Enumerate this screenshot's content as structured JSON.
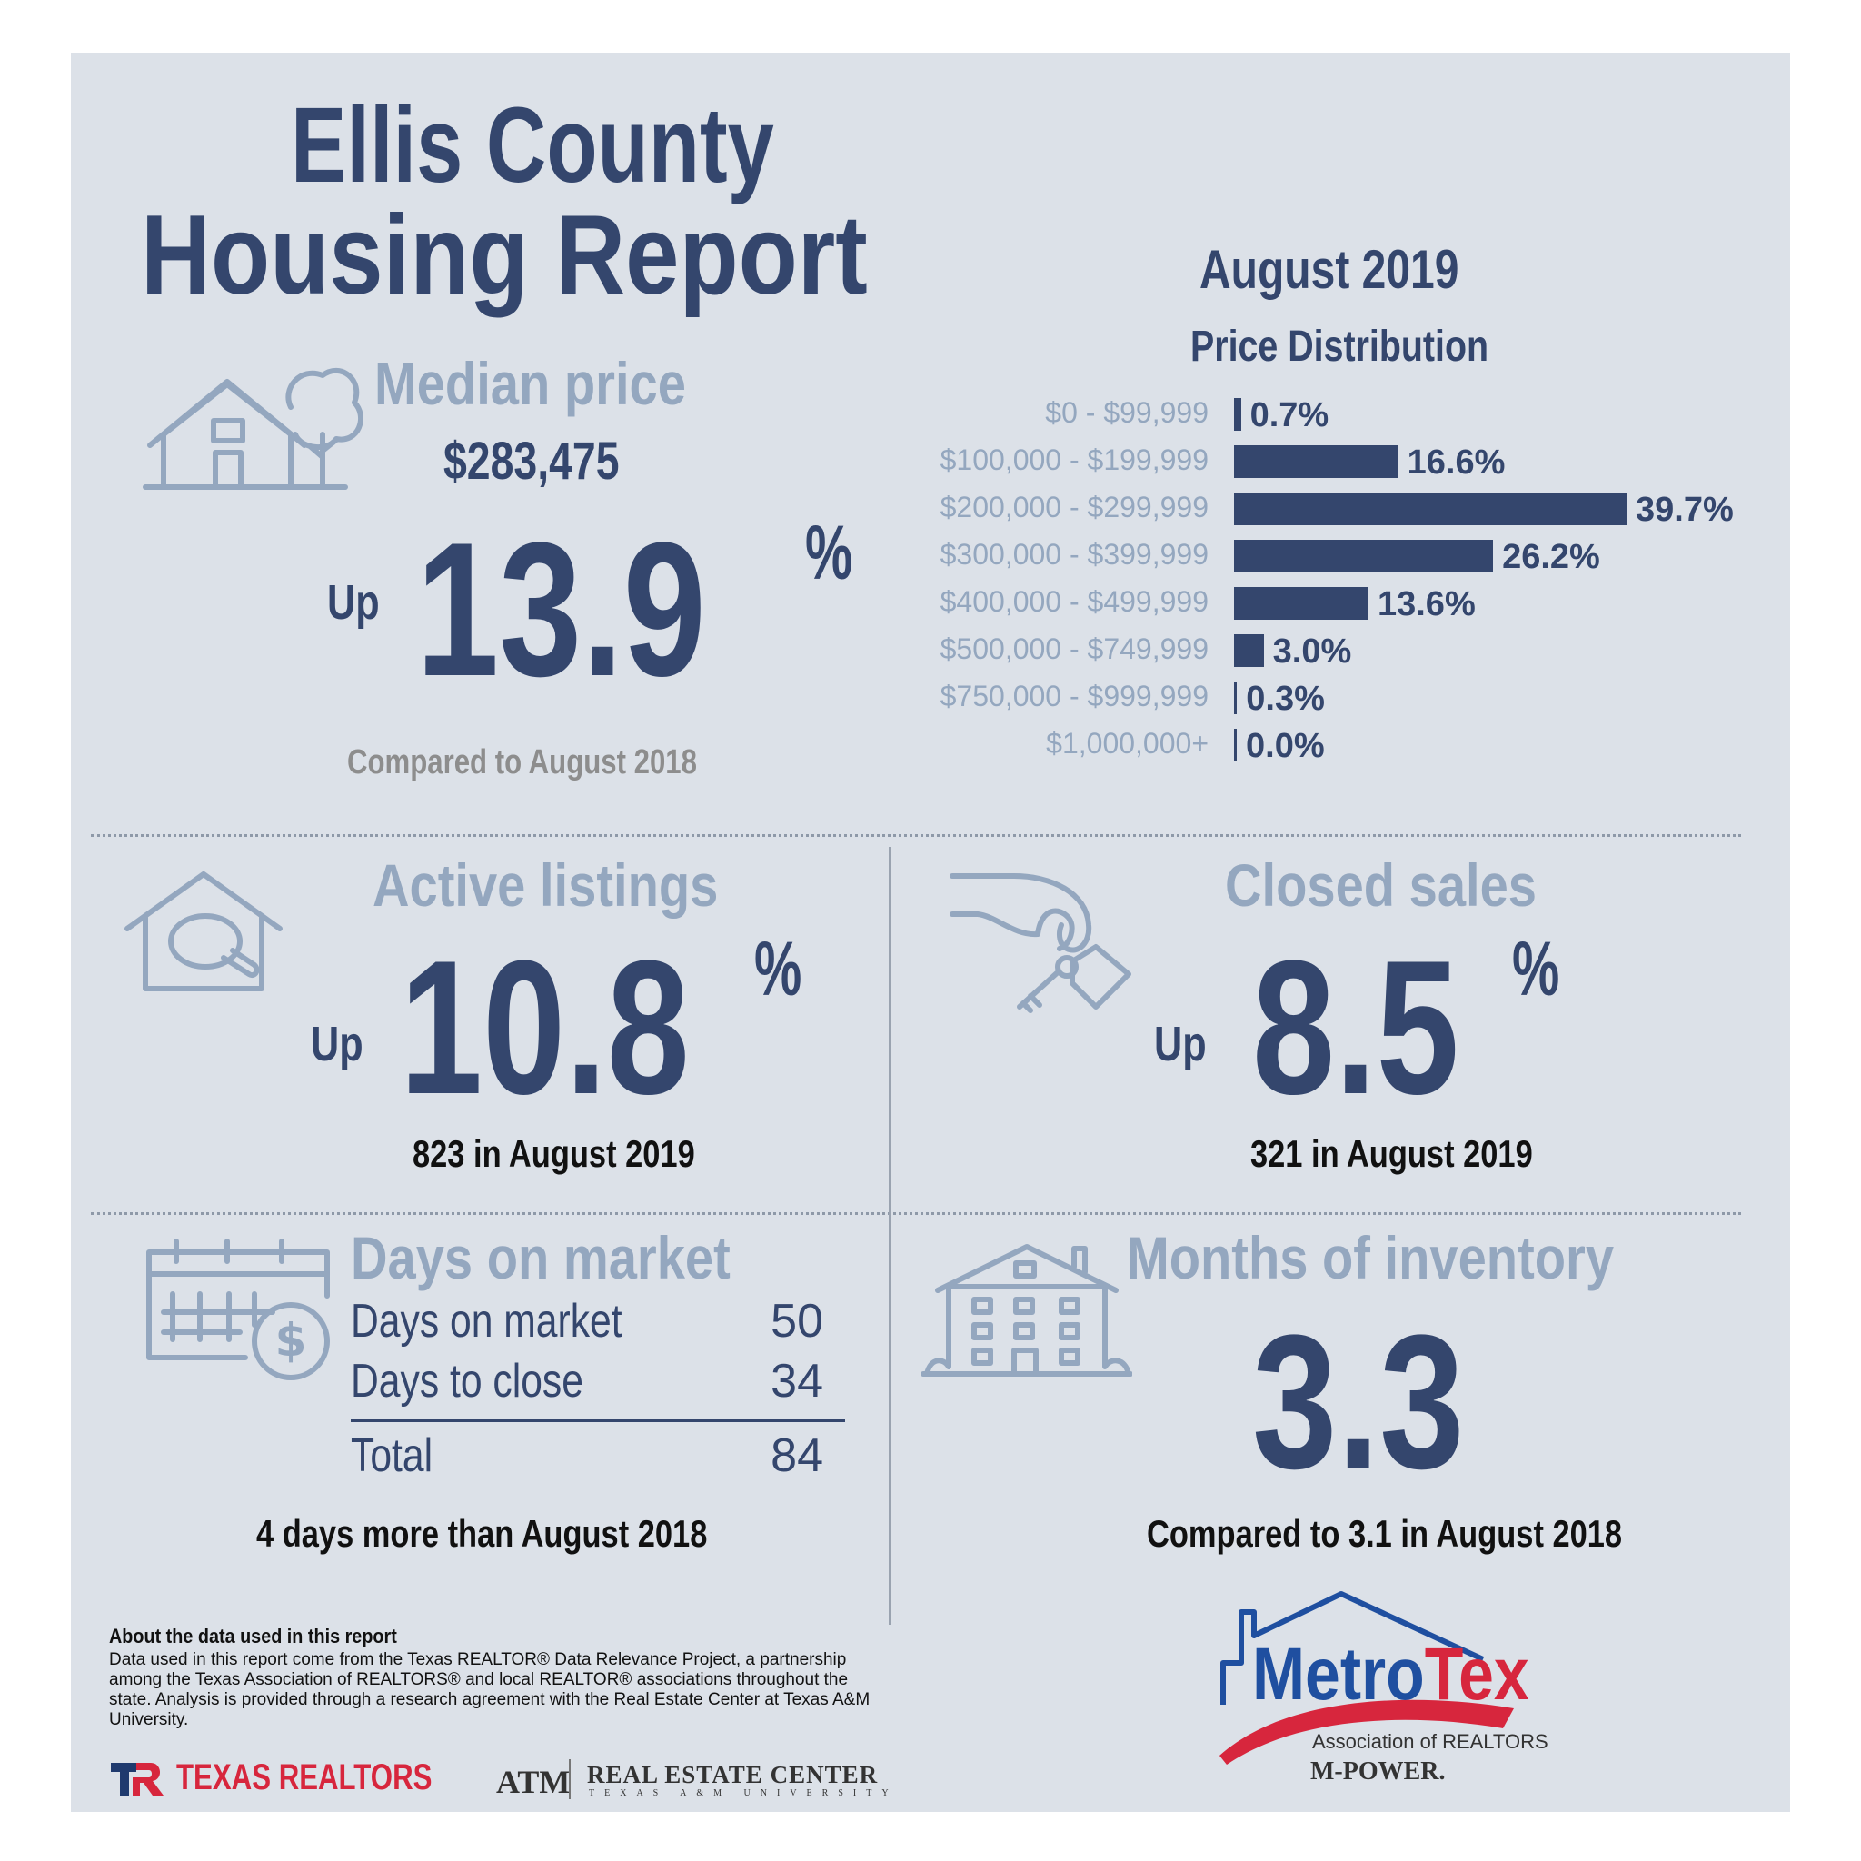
{
  "title": {
    "line1": "Ellis County",
    "line2": "Housing Report"
  },
  "period": "August 2019",
  "median": {
    "title": "Median price",
    "price": "$283,475",
    "direction": "Up",
    "value": "13.9",
    "unit": "%",
    "note": "Compared to August 2018"
  },
  "distribution": {
    "title": "Price Distribution",
    "rows": [
      {
        "label": "$0 - $99,999",
        "value": "0.7%",
        "pct": 0.7
      },
      {
        "label": "$100,000 - $199,999",
        "value": "16.6%",
        "pct": 16.6
      },
      {
        "label": "$200,000 - $299,999",
        "value": "39.7%",
        "pct": 39.7
      },
      {
        "label": "$300,000 - $399,999",
        "value": "26.2%",
        "pct": 26.2
      },
      {
        "label": "$400,000 - $499,999",
        "value": "13.6%",
        "pct": 13.6
      },
      {
        "label": "$500,000 - $749,999",
        "value": "3.0%",
        "pct": 3.0
      },
      {
        "label": "$750,000 - $999,999",
        "value": "0.3%",
        "pct": 0.3
      },
      {
        "label": "$1,000,000+",
        "value": "0.0%",
        "pct": 0.0
      }
    ]
  },
  "active": {
    "title": "Active listings",
    "direction": "Up",
    "value": "10.8",
    "unit": "%",
    "note": "823 in August 2019"
  },
  "closed": {
    "title": "Closed sales",
    "direction": "Up",
    "value": "8.5",
    "unit": "%",
    "note": "321 in August 2019"
  },
  "dom": {
    "title": "Days on market",
    "rows": [
      {
        "label": "Days on market",
        "value": "50"
      },
      {
        "label": "Days to close",
        "value": "34"
      }
    ],
    "total_label": "Total",
    "total_value": "84",
    "note": "4 days more than August 2018"
  },
  "inventory": {
    "title": "Months of inventory",
    "value": "3.3",
    "note": "Compared to 3.1 in August 2018"
  },
  "about": {
    "heading": "About the data used in this report",
    "body": "Data used in this report come from the Texas REALTOR® Data Relevance Project, a partnership among the Texas Association of REALTORS® and local REALTOR® associations throughout the state. Analysis is provided through a research agreement with the Real Estate Center at Texas A&M University."
  },
  "logos": {
    "texas_realtors": "TEXAS REALTORS",
    "atm": "ATM",
    "rec": "REAL ESTATE CENTER",
    "rec_sub": "TEXAS A&M UNIVERSITY",
    "metro": "Metro",
    "tex": "Tex",
    "assoc": "Association of REALTORS",
    "mpower": "M-POWER."
  },
  "colors": {
    "navy": "#34466d",
    "light": "#94a7bf",
    "red": "#d7263d",
    "blue": "#1f4fa0"
  }
}
